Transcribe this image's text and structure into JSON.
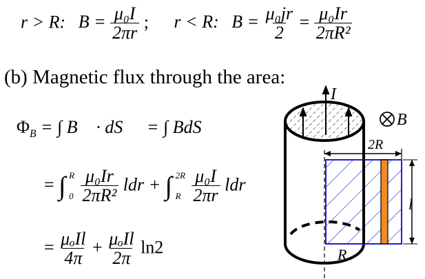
{
  "top": {
    "case1_cond": "r > R:",
    "case1_lhs": "B =",
    "case1_num": "μ₀I",
    "case1_den": "2πr",
    "sep": ";",
    "case2_cond": "r < R:",
    "case2_lhs": "B =",
    "case2_num1": "μ₀jr",
    "case2_den1": "2",
    "eq": "=",
    "case2_num2": "μ₀Ir",
    "case2_den2": "2πR²"
  },
  "heading": "(b) Magnetic flux through the area:",
  "eq1": {
    "lhs": "Φ",
    "sub": "B",
    "mid": "= ∫ B⃗ · dS⃗",
    "rhs": "= ∫ BdS"
  },
  "eq2": {
    "eq": "=",
    "int1_upper": "R",
    "int1_lower": "0",
    "num1": "μ₀Ir",
    "den1": "2πR²",
    "tail1": "ldr +",
    "int2_upper": "2R",
    "int2_lower": "R",
    "num2": "μ₀I",
    "den2": "2πr",
    "tail2": "ldr"
  },
  "eq3": {
    "eq": "=",
    "num1": "μₒIl",
    "den1": "4π",
    "plus": "+",
    "num2": "μₒIl",
    "den2": "2π",
    "tail": "ln2"
  },
  "diagram": {
    "current_label": "I",
    "field_label": "B⃗",
    "width_label": "2R",
    "length_label": "l",
    "radius_label": "R",
    "colors": {
      "region": "#1f1fd0",
      "strip": "#f08a24",
      "line": "#000000"
    }
  }
}
